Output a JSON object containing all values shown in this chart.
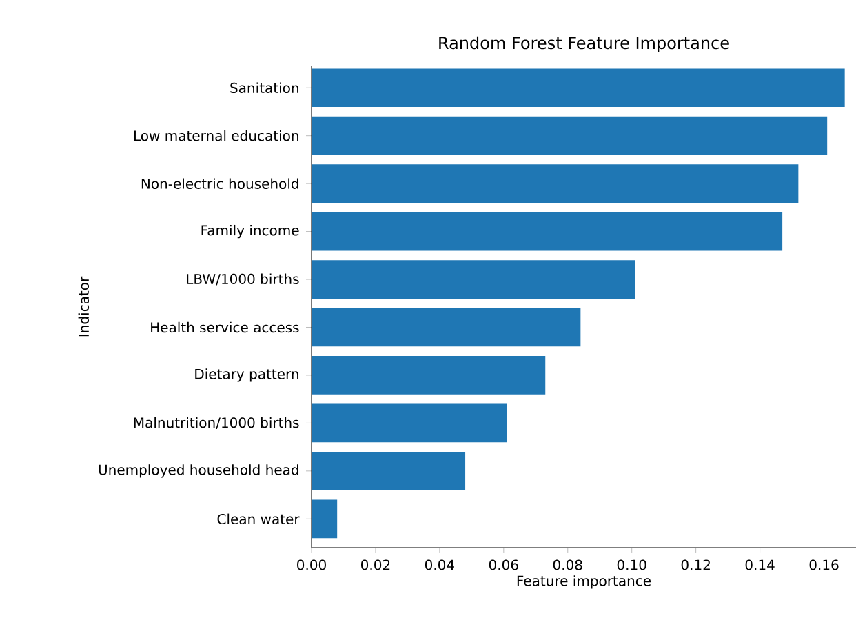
{
  "chart_data": {
    "type": "bar",
    "orientation": "horizontal",
    "title": "Random Forest Feature Importance",
    "xlabel": "Feature importance",
    "ylabel": "Indicator",
    "categories": [
      "Sanitation",
      "Low maternal education",
      "Non-electric household",
      "Family income",
      "LBW/1000 births",
      "Health service access",
      "Dietary pattern",
      "Malnutrition/1000 births",
      "Unemployed household head",
      "Clean water"
    ],
    "values": [
      0.1665,
      0.161,
      0.152,
      0.147,
      0.101,
      0.084,
      0.073,
      0.061,
      0.048,
      0.008
    ],
    "color": "#1f77b4",
    "xlim": [
      0,
      0.17
    ],
    "xticks": [
      {
        "value": 0,
        "label": "0.00"
      },
      {
        "value": 0.02,
        "label": "0.02"
      },
      {
        "value": 0.04,
        "label": "0.04"
      },
      {
        "value": 0.06,
        "label": "0.06"
      },
      {
        "value": 0.08,
        "label": "0.08"
      },
      {
        "value": 0.1,
        "label": "0.10"
      },
      {
        "value": 0.12,
        "label": "0.12"
      },
      {
        "value": 0.14,
        "label": "0.14"
      },
      {
        "value": 0.16,
        "label": "0.16"
      }
    ],
    "grid": false
  }
}
